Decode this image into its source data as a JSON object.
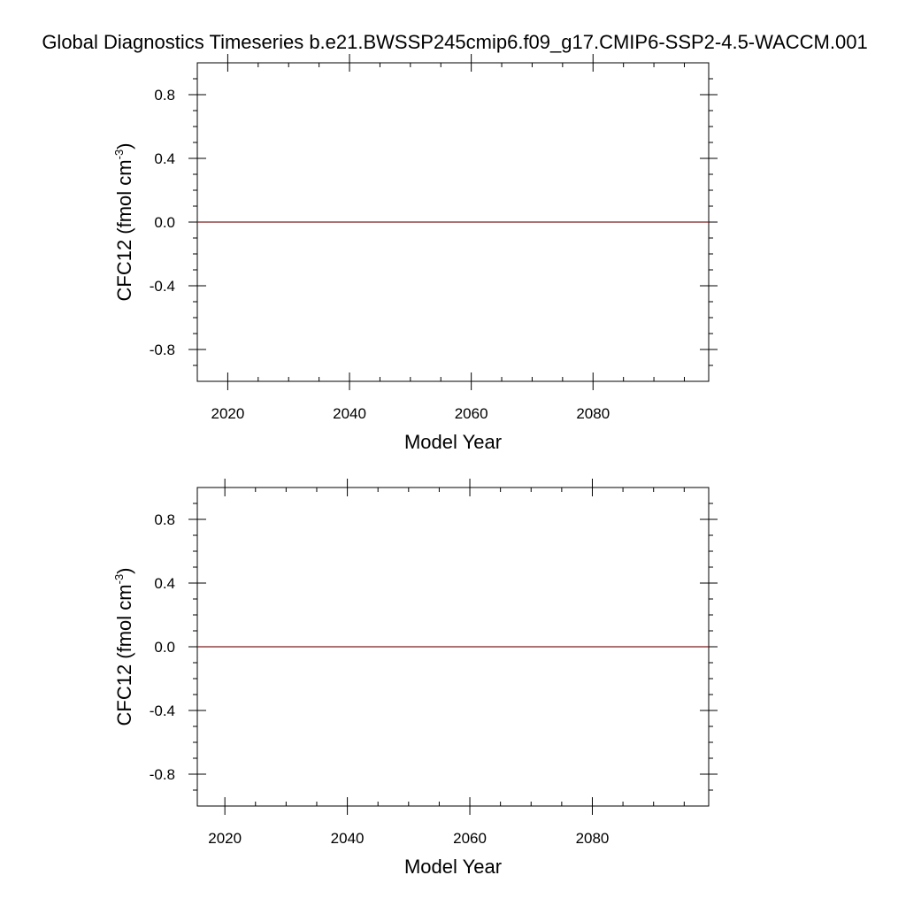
{
  "title": "Global Diagnostics Timeseries b.e21.BWSSP245cmip6.f09_g17.CMIP6-SSP2-4.5-WACCM.001",
  "colors": {
    "series_line": "#7a1f1f",
    "axis": "#000000",
    "background": "#ffffff"
  },
  "chart_data": [
    {
      "type": "line",
      "xlabel": "Model Year",
      "ylabel_main": "CFC12 (fmol cm",
      "ylabel_sup": "-3",
      "ylabel_close": ")",
      "xlim": [
        2015,
        2099
      ],
      "ylim": [
        -1.0,
        1.0
      ],
      "x_ticks": [
        2020,
        2040,
        2060,
        2080
      ],
      "x_tick_labels": [
        "2020",
        "2040",
        "2060",
        "2080"
      ],
      "x_minor_step": 5,
      "y_ticks": [
        0.8,
        0.4,
        0.0,
        -0.4,
        -0.8
      ],
      "y_tick_labels": [
        "0.8",
        "0.4",
        "0.0",
        "-0.4",
        "-0.8"
      ],
      "y_minor_step": 0.1,
      "grid": false,
      "series": [
        {
          "x": [
            2015,
            2099
          ],
          "y": [
            0.0,
            0.0
          ]
        }
      ]
    },
    {
      "type": "line",
      "xlabel": "Model Year",
      "ylabel_main": "CFC12 (fmol cm",
      "ylabel_sup": "-3",
      "ylabel_close": ")",
      "xlim": [
        2015.5,
        2099
      ],
      "ylim": [
        -1.0,
        1.0
      ],
      "x_ticks": [
        2020,
        2040,
        2060,
        2080
      ],
      "x_tick_labels": [
        "2020",
        "2040",
        "2060",
        "2080"
      ],
      "x_minor_step": 5,
      "y_ticks": [
        0.8,
        0.4,
        0.0,
        -0.4,
        -0.8
      ],
      "y_tick_labels": [
        "0.8",
        "0.4",
        "0.0",
        "-0.4",
        "-0.8"
      ],
      "y_minor_step": 0.1,
      "grid": false,
      "series": [
        {
          "x": [
            2015.5,
            2099
          ],
          "y": [
            0.0,
            0.0
          ]
        }
      ]
    }
  ]
}
